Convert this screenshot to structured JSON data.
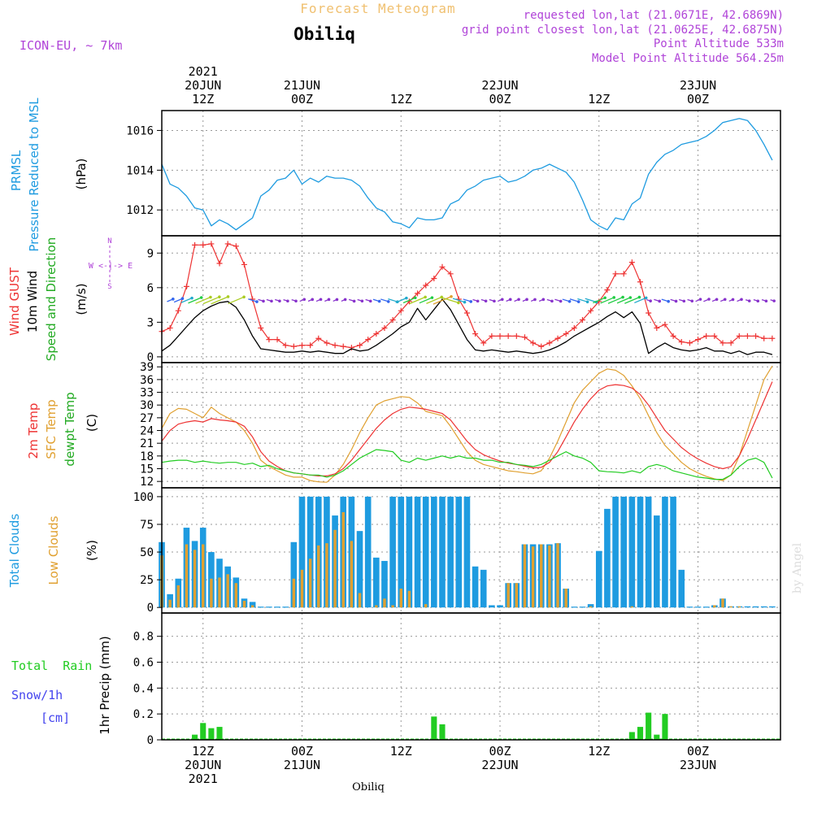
{
  "header": {
    "title": "Forecast Meteogram",
    "station": "Obiliq",
    "model": "ICON-EU, ~ 7km",
    "requested": "requested lon,lat (21.0671E, 42.6869N)",
    "gridpoint": "grid point closest lon,lat (21.0625E, 42.6875N)",
    "point_alt": "Point Altitude 533m",
    "model_alt": "Model Point Altitude 564.25m",
    "footer_station": "Obiliq",
    "credit": "by Angel"
  },
  "time_axis": {
    "top_ticks": [
      {
        "lines": [
          "2021",
          "20JUN",
          "12Z"
        ]
      },
      {
        "lines": [
          "21JUN",
          "00Z"
        ]
      },
      {
        "lines": [
          "12Z"
        ]
      },
      {
        "lines": [
          "22JUN",
          "00Z"
        ]
      },
      {
        "lines": [
          "12Z"
        ]
      },
      {
        "lines": [
          "23JUN",
          "00Z"
        ]
      }
    ],
    "bottom_ticks": [
      {
        "lines": [
          "12Z",
          "20JUN",
          "2021"
        ]
      },
      {
        "lines": [
          "00Z",
          "21JUN"
        ]
      },
      {
        "lines": [
          "12Z"
        ]
      },
      {
        "lines": [
          "00Z",
          "22JUN"
        ]
      },
      {
        "lines": [
          "12Z"
        ]
      },
      {
        "lines": [
          "00Z",
          "23JUN"
        ]
      }
    ],
    "tick_hours": [
      0,
      12,
      24,
      36,
      48,
      60
    ],
    "range_hours": [
      -5,
      70
    ]
  },
  "panels": {
    "pressure": {
      "label1": "PRMSL",
      "label2": "Pressure Reduced to MSL",
      "unit": "(hPa)"
    },
    "wind": {
      "label_gust": "Wind GUST",
      "label_wind": "10m Wind",
      "label_dir": "Speed and Direction",
      "unit": "(m/s)",
      "compass_n": "N",
      "compass_s": "S",
      "compass_we": "W <-|-> E"
    },
    "temp": {
      "label1": "2m Temp",
      "label2": "SFC Temp",
      "label3": "dewpt Temp",
      "unit": "(C)"
    },
    "clouds": {
      "label1": "Total Clouds",
      "label2": "Low Clouds",
      "unit": "(%)"
    },
    "precip": {
      "label_rain": "Total  Rain",
      "label_snow": "Snow/1h",
      "label_cm": "[cm]",
      "unit": "1hr Precip (mm)"
    }
  },
  "colors": {
    "pressure": "#1e9be0",
    "gust": "#ee3333",
    "wind": "#000000",
    "temp2m": "#ee3333",
    "sfc": "#e0a030",
    "dew": "#22cc22",
    "total_clouds": "#1e9be0",
    "low_clouds": "#e0a030",
    "rain": "#22cc22",
    "snow": "#4444ee",
    "title": "#f0c070",
    "meta": "#b044d8"
  },
  "chart_data": [
    {
      "type": "line",
      "panel": "pressure",
      "ylabel": "(hPa)",
      "ylim": [
        1010.7,
        1017.0
      ],
      "yticks": [
        1012,
        1014,
        1016
      ],
      "x_hours": [
        -5,
        -4,
        -3,
        -2,
        -1,
        0,
        1,
        2,
        3,
        4,
        5,
        6,
        7,
        8,
        9,
        10,
        11,
        12,
        13,
        14,
        15,
        16,
        17,
        18,
        19,
        20,
        21,
        22,
        23,
        24,
        25,
        26,
        27,
        28,
        29,
        30,
        31,
        32,
        33,
        34,
        35,
        36,
        37,
        38,
        39,
        40,
        41,
        42,
        43,
        44,
        45,
        46,
        47,
        48,
        49,
        50,
        51,
        52,
        53,
        54,
        55,
        56,
        57,
        58,
        59,
        60,
        61,
        62,
        63,
        64,
        65,
        66,
        67,
        68,
        69
      ],
      "series": [
        {
          "values": [
            1014.3,
            1013.3,
            1013.1,
            1012.7,
            1012.1,
            1012.0,
            1011.2,
            1011.5,
            1011.3,
            1011.0,
            1011.3,
            1011.6,
            1012.7,
            1013.0,
            1013.5,
            1013.6,
            1014.0,
            1013.3,
            1013.6,
            1013.4,
            1013.7,
            1013.6,
            1013.6,
            1013.5,
            1013.2,
            1012.6,
            1012.1,
            1011.9,
            1011.4,
            1011.3,
            1011.1,
            1011.6,
            1011.5,
            1011.5,
            1011.6,
            1012.3,
            1012.5,
            1013.0,
            1013.2,
            1013.5,
            1013.6,
            1013.7,
            1013.4,
            1013.5,
            1013.7,
            1014.0,
            1014.1,
            1014.3,
            1014.1,
            1013.9,
            1013.4,
            1012.5,
            1011.5,
            1011.2,
            1011.0,
            1011.6,
            1011.5,
            1012.3,
            1012.6,
            1013.8,
            1014.4,
            1014.8,
            1015.0,
            1015.3,
            1015.4,
            1015.5,
            1015.7,
            1016.0,
            1016.4,
            1016.5,
            1016.6,
            1016.5,
            1016.0,
            1015.3,
            1014.5
          ]
        }
      ]
    },
    {
      "type": "line",
      "panel": "wind",
      "ylabel": "(m/s)",
      "ylim": [
        -0.5,
        10.5
      ],
      "yticks": [
        0,
        3,
        6,
        9
      ],
      "x_hours": [
        -5,
        -4,
        -3,
        -2,
        -1,
        0,
        1,
        2,
        3,
        4,
        5,
        6,
        7,
        8,
        9,
        10,
        11,
        12,
        13,
        14,
        15,
        16,
        17,
        18,
        19,
        20,
        21,
        22,
        23,
        24,
        25,
        26,
        27,
        28,
        29,
        30,
        31,
        32,
        33,
        34,
        35,
        36,
        37,
        38,
        39,
        40,
        41,
        42,
        43,
        44,
        45,
        46,
        47,
        48,
        49,
        50,
        51,
        52,
        53,
        54,
        55,
        56,
        57,
        58,
        59,
        60,
        61,
        62,
        63,
        64,
        65,
        66,
        67,
        68,
        69
      ],
      "series": [
        {
          "name": "Wind GUST",
          "values": [
            2.2,
            2.5,
            4.0,
            6.1,
            9.7,
            9.7,
            9.8,
            8.1,
            9.8,
            9.6,
            8.0,
            5.0,
            2.5,
            1.5,
            1.5,
            1.0,
            0.9,
            1.0,
            1.0,
            1.6,
            1.2,
            1.0,
            0.9,
            0.8,
            1.0,
            1.5,
            2.0,
            2.5,
            3.2,
            4.0,
            4.8,
            5.5,
            6.2,
            6.8,
            7.8,
            7.2,
            5.0,
            3.8,
            2.0,
            1.2,
            1.8,
            1.8,
            1.8,
            1.8,
            1.7,
            1.2,
            0.9,
            1.2,
            1.6,
            2.0,
            2.5,
            3.2,
            4.0,
            4.8,
            5.8,
            7.2,
            7.2,
            8.2,
            6.5,
            3.8,
            2.5,
            2.8,
            1.8,
            1.3,
            1.2,
            1.5,
            1.8,
            1.8,
            1.2,
            1.2,
            1.8,
            1.8,
            1.8,
            1.6,
            1.6
          ]
        },
        {
          "name": "10m Wind",
          "values": [
            0.5,
            1.0,
            1.8,
            2.6,
            3.4,
            4.0,
            4.4,
            4.7,
            4.8,
            4.3,
            3.2,
            1.8,
            0.7,
            0.6,
            0.5,
            0.4,
            0.4,
            0.5,
            0.4,
            0.5,
            0.4,
            0.3,
            0.3,
            0.7,
            0.5,
            0.6,
            1.0,
            1.5,
            2.0,
            2.6,
            3.0,
            4.2,
            3.2,
            4.1,
            5.0,
            4.1,
            2.8,
            1.5,
            0.6,
            0.5,
            0.6,
            0.5,
            0.4,
            0.5,
            0.4,
            0.3,
            0.4,
            0.6,
            0.9,
            1.3,
            1.8,
            2.2,
            2.6,
            3.0,
            3.5,
            3.9,
            3.4,
            3.9,
            2.9,
            0.3,
            0.8,
            1.2,
            0.8,
            0.6,
            0.5,
            0.6,
            0.8,
            0.5,
            0.5,
            0.3,
            0.5,
            0.2,
            0.4,
            0.4,
            0.2
          ]
        }
      ],
      "arrow_row_value": 4.9
    },
    {
      "type": "line",
      "panel": "temp",
      "ylabel": "(C)",
      "ylim": [
        10.5,
        40
      ],
      "yticks": [
        12,
        15,
        18,
        21,
        24,
        27,
        30,
        33,
        36,
        39
      ],
      "x_hours": [
        -5,
        -4,
        -3,
        -2,
        -1,
        0,
        1,
        2,
        3,
        4,
        5,
        6,
        7,
        8,
        9,
        10,
        11,
        12,
        13,
        14,
        15,
        16,
        17,
        18,
        19,
        20,
        21,
        22,
        23,
        24,
        25,
        26,
        27,
        28,
        29,
        30,
        31,
        32,
        33,
        34,
        35,
        36,
        37,
        38,
        39,
        40,
        41,
        42,
        43,
        44,
        45,
        46,
        47,
        48,
        49,
        50,
        51,
        52,
        53,
        54,
        55,
        56,
        57,
        58,
        59,
        60,
        61,
        62,
        63,
        64,
        65,
        66,
        67,
        68,
        69
      ],
      "series": [
        {
          "name": "2m Temp",
          "values": [
            21.5,
            24.0,
            25.5,
            26.0,
            26.3,
            26.0,
            26.8,
            26.5,
            26.3,
            26.0,
            25.0,
            22.5,
            19.0,
            16.8,
            15.5,
            14.5,
            14.0,
            13.8,
            13.5,
            13.3,
            13.3,
            13.8,
            15.0,
            17.0,
            19.5,
            22.0,
            24.5,
            26.5,
            28.0,
            29.0,
            29.5,
            29.3,
            29.0,
            28.5,
            28.0,
            26.5,
            24.0,
            21.5,
            19.5,
            18.3,
            17.5,
            16.8,
            16.3,
            16.0,
            15.6,
            15.2,
            15.3,
            16.5,
            19.0,
            22.5,
            26.0,
            29.0,
            31.5,
            33.5,
            34.5,
            34.8,
            34.6,
            34.0,
            32.5,
            30.0,
            27.0,
            24.0,
            22.0,
            20.0,
            18.5,
            17.3,
            16.3,
            15.5,
            15.0,
            15.5,
            18.0,
            22.0,
            26.5,
            31.0,
            35.5
          ]
        },
        {
          "name": "SFC Temp",
          "values": [
            24.5,
            28.0,
            29.2,
            29.0,
            28.0,
            27.0,
            29.5,
            28.0,
            27.0,
            26.0,
            24.0,
            21.0,
            17.0,
            15.5,
            14.5,
            13.5,
            13.0,
            13.0,
            12.2,
            11.9,
            11.8,
            13.5,
            16.0,
            19.5,
            23.5,
            27.0,
            30.0,
            31.0,
            31.5,
            32.0,
            31.8,
            30.5,
            28.5,
            28.0,
            27.5,
            25.0,
            22.0,
            19.0,
            17.0,
            16.0,
            15.5,
            15.0,
            14.5,
            14.3,
            14.0,
            13.8,
            14.5,
            17.5,
            21.5,
            26.0,
            30.5,
            33.5,
            35.5,
            37.5,
            38.5,
            38.2,
            37.0,
            34.5,
            31.5,
            27.5,
            23.5,
            20.5,
            18.5,
            16.5,
            15.0,
            14.0,
            13.2,
            12.6,
            12.2,
            13.5,
            18.0,
            24.0,
            30.0,
            36.0,
            39.2
          ]
        },
        {
          "name": "dewpt Temp",
          "values": [
            16.5,
            16.8,
            17.0,
            17.0,
            16.5,
            16.8,
            16.5,
            16.3,
            16.5,
            16.5,
            16.0,
            16.3,
            15.5,
            15.8,
            15.0,
            14.5,
            14.0,
            13.8,
            13.5,
            13.5,
            13.0,
            13.5,
            14.5,
            16.0,
            17.5,
            18.5,
            19.5,
            19.3,
            19.0,
            17.0,
            16.5,
            17.5,
            17.0,
            17.5,
            18.0,
            17.5,
            18.0,
            17.5,
            17.5,
            17.0,
            17.0,
            16.5,
            16.5,
            16.0,
            15.8,
            15.5,
            16.0,
            17.0,
            18.0,
            19.0,
            18.0,
            17.5,
            16.5,
            14.5,
            14.3,
            14.2,
            14.0,
            14.5,
            14.0,
            15.5,
            16.0,
            15.5,
            14.5,
            14.0,
            13.5,
            13.0,
            12.8,
            12.5,
            12.5,
            13.5,
            15.5,
            17.0,
            17.5,
            16.5,
            12.8
          ]
        }
      ]
    },
    {
      "type": "bar",
      "panel": "clouds",
      "ylabel": "(%)",
      "ylim": [
        -5,
        108
      ],
      "yticks": [
        0,
        25,
        50,
        75,
        100
      ],
      "x_hours": [
        -5,
        -4,
        -3,
        -2,
        -1,
        0,
        1,
        2,
        3,
        4,
        5,
        6,
        7,
        8,
        9,
        10,
        11,
        12,
        13,
        14,
        15,
        16,
        17,
        18,
        19,
        20,
        21,
        22,
        23,
        24,
        25,
        26,
        27,
        28,
        29,
        30,
        31,
        32,
        33,
        34,
        35,
        36,
        37,
        38,
        39,
        40,
        41,
        42,
        43,
        44,
        45,
        46,
        47,
        48,
        49,
        50,
        51,
        52,
        53,
        54,
        55,
        56,
        57,
        58,
        59,
        60,
        61,
        62,
        63,
        64,
        65,
        66,
        67,
        68,
        69
      ],
      "series": [
        {
          "name": "Total Clouds",
          "values": [
            59,
            12,
            26,
            72,
            60,
            72,
            50,
            44,
            37,
            27,
            8,
            5,
            0,
            0,
            0,
            0,
            59,
            100,
            100,
            100,
            100,
            83,
            100,
            100,
            69,
            100,
            45,
            42,
            100,
            100,
            100,
            100,
            100,
            100,
            100,
            100,
            100,
            100,
            37,
            34,
            2,
            2,
            22,
            22,
            57,
            57,
            57,
            57,
            58,
            17,
            0,
            0,
            3,
            51,
            89,
            100,
            100,
            100,
            100,
            100,
            83,
            100,
            100,
            34,
            0,
            0,
            0,
            2,
            8,
            1,
            1,
            1,
            1,
            1,
            1
          ]
        },
        {
          "name": "Low Clouds",
          "values": [
            47,
            7,
            20,
            57,
            52,
            57,
            26,
            27,
            30,
            22,
            6,
            2,
            0,
            0,
            0,
            0,
            26,
            34,
            44,
            56,
            58,
            70,
            86,
            60,
            13,
            0,
            2,
            8,
            2,
            17,
            15,
            0,
            3,
            0,
            0,
            0,
            0,
            0,
            0,
            0,
            0,
            0,
            22,
            22,
            57,
            55,
            57,
            56,
            58,
            17,
            0,
            0,
            1,
            0,
            0,
            0,
            0,
            1,
            0,
            0,
            0,
            0,
            0,
            0,
            0,
            0,
            0,
            2,
            8,
            1,
            1,
            0,
            0,
            0,
            0
          ]
        }
      ]
    },
    {
      "type": "bar",
      "panel": "precip",
      "ylabel": "1hr Precip (mm)",
      "ylim": [
        0,
        0.98
      ],
      "yticks": [
        0,
        0.2,
        0.4,
        0.6,
        0.8
      ],
      "x_hours": [
        -1,
        0,
        1,
        2,
        3,
        28,
        29,
        52,
        53,
        54,
        55,
        56,
        57
      ],
      "series": [
        {
          "name": "Total Rain",
          "values": [
            0.04,
            0.13,
            0.09,
            0.1,
            0,
            0.18,
            0.12,
            0.06,
            0.1,
            0.21,
            0.04,
            0.2,
            0
          ]
        }
      ]
    }
  ],
  "wind_barbs_hours": [
    -4,
    -3,
    -2,
    -1,
    0,
    1,
    2,
    4,
    6,
    7,
    8,
    9,
    10,
    11,
    12,
    13,
    14,
    15,
    16,
    17,
    18,
    19,
    20,
    21,
    22,
    23,
    24,
    25,
    26,
    27,
    28,
    29,
    30,
    31,
    32,
    33,
    34,
    35,
    36,
    37,
    38,
    39,
    40,
    41,
    42,
    43,
    44,
    45,
    46,
    47,
    48,
    49,
    50,
    51,
    52,
    53,
    54,
    55,
    56,
    57,
    58,
    59,
    60,
    61,
    62,
    63,
    64,
    65,
    66,
    67,
    68,
    69
  ]
}
